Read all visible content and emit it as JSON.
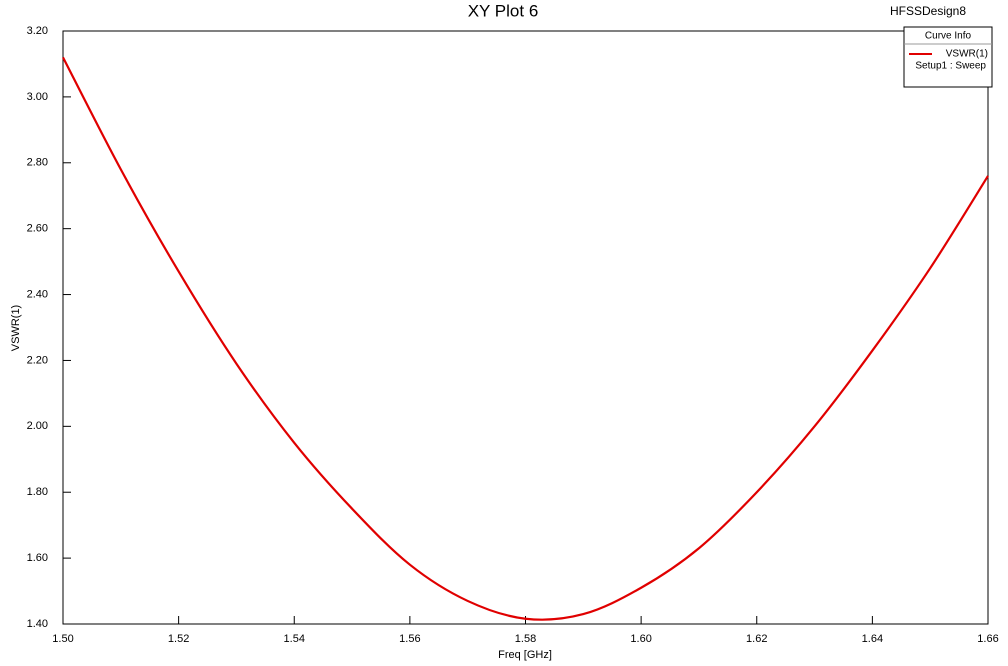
{
  "chart_data": {
    "type": "line",
    "title": "XY Plot 6",
    "design_name": "HFSSDesign8",
    "xlabel": "Freq [GHz]",
    "ylabel": "VSWR(1)",
    "legend_title": "Curve Info",
    "legend_subtitle": "Setup1 : Sweep",
    "legend_position": "upper right",
    "grid": false,
    "x": [
      1.5,
      1.51,
      1.52,
      1.53,
      1.54,
      1.55,
      1.56,
      1.57,
      1.58,
      1.59,
      1.6,
      1.61,
      1.62,
      1.63,
      1.64,
      1.65,
      1.66
    ],
    "series": [
      {
        "name": "VSWR(1)",
        "color": "#e00000",
        "values": [
          3.12,
          2.78,
          2.47,
          2.19,
          1.95,
          1.75,
          1.58,
          1.47,
          1.416,
          1.43,
          1.51,
          1.63,
          1.8,
          2.0,
          2.23,
          2.48,
          2.76
        ]
      }
    ],
    "xlim": [
      1.5,
      1.66
    ],
    "xticks": [
      {
        "value": 1.5,
        "label": "1.50"
      },
      {
        "value": 1.52,
        "label": "1.52"
      },
      {
        "value": 1.54,
        "label": "1.54"
      },
      {
        "value": 1.56,
        "label": "1.56"
      },
      {
        "value": 1.58,
        "label": "1.58"
      },
      {
        "value": 1.6,
        "label": "1.60"
      },
      {
        "value": 1.62,
        "label": "1.62"
      },
      {
        "value": 1.64,
        "label": "1.64"
      },
      {
        "value": 1.66,
        "label": "1.66"
      }
    ],
    "ylim": [
      1.4,
      3.2
    ],
    "yticks": [
      {
        "value": 1.4,
        "label": "1.40"
      },
      {
        "value": 1.6,
        "label": "1.60"
      },
      {
        "value": 1.8,
        "label": "1.80"
      },
      {
        "value": 2.0,
        "label": "2.00"
      },
      {
        "value": 2.2,
        "label": "2.20"
      },
      {
        "value": 2.4,
        "label": "2.40"
      },
      {
        "value": 2.6,
        "label": "2.60"
      },
      {
        "value": 2.8,
        "label": "2.80"
      },
      {
        "value": 3.0,
        "label": "3.00"
      },
      {
        "value": 3.2,
        "label": "3.20"
      }
    ]
  }
}
